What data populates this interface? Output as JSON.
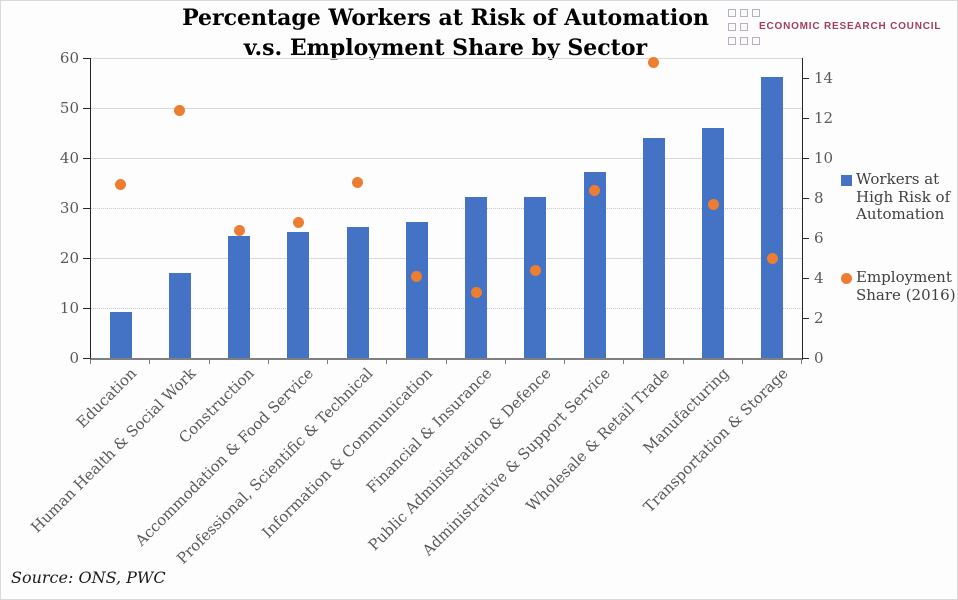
{
  "title": {
    "line1": "Percentage Workers at Risk of Automation",
    "line2": "v.s. Employment Share by Sector"
  },
  "logo": {
    "text": "ECONOMIC RESEARCH COUNCIL"
  },
  "source": {
    "text": "Source: ONS, PWC"
  },
  "colors": {
    "bar_blue": "#4472C4",
    "dot_orange": "#ED7D31",
    "axis_text_gray": "#595959",
    "gridline_gray": "#D9D9D9",
    "legend_text": "#404040",
    "logo_maroon": "#A23E5E"
  },
  "chart_data": {
    "type": "combo",
    "title": "Percentage Workers at Risk of Automation v.s. Employment Share by Sector",
    "categories": [
      "Education",
      "Human Health & Social Work",
      "Construction",
      "Accommodation & Food Service",
      "Professional, Scientific & Technical",
      "Information & Communication",
      "Financial & Insurance",
      "Public Administration & Defence",
      "Administrative & Support Service",
      "Wholesale & Retail Trade",
      "Manufacturing",
      "Transportation & Storage"
    ],
    "series": [
      {
        "name": "Workers at High Risk of Automation",
        "type": "bar",
        "axis": "left",
        "color": "#4472C4",
        "values": [
          9.2,
          17.1,
          24.4,
          25.2,
          26.2,
          27.2,
          32.2,
          32.3,
          37.2,
          44.1,
          46.1,
          56.2
        ]
      },
      {
        "name": "Employment Share (2016)",
        "type": "scatter",
        "axis": "right",
        "color": "#ED7D31",
        "values": [
          8.7,
          12.4,
          6.4,
          6.8,
          8.8,
          4.1,
          3.3,
          4.4,
          8.4,
          14.8,
          7.7,
          5.0
        ]
      }
    ],
    "left_axis": {
      "min": 0,
      "max": 60,
      "ticks": [
        0,
        10,
        20,
        30,
        40,
        50,
        60
      ]
    },
    "right_axis": {
      "min": 0,
      "max": 15,
      "ticks": [
        0,
        2,
        4,
        6,
        8,
        10,
        12,
        14
      ]
    },
    "grid": true,
    "legend_position": "right",
    "x_labels_rotation_deg": 45
  }
}
